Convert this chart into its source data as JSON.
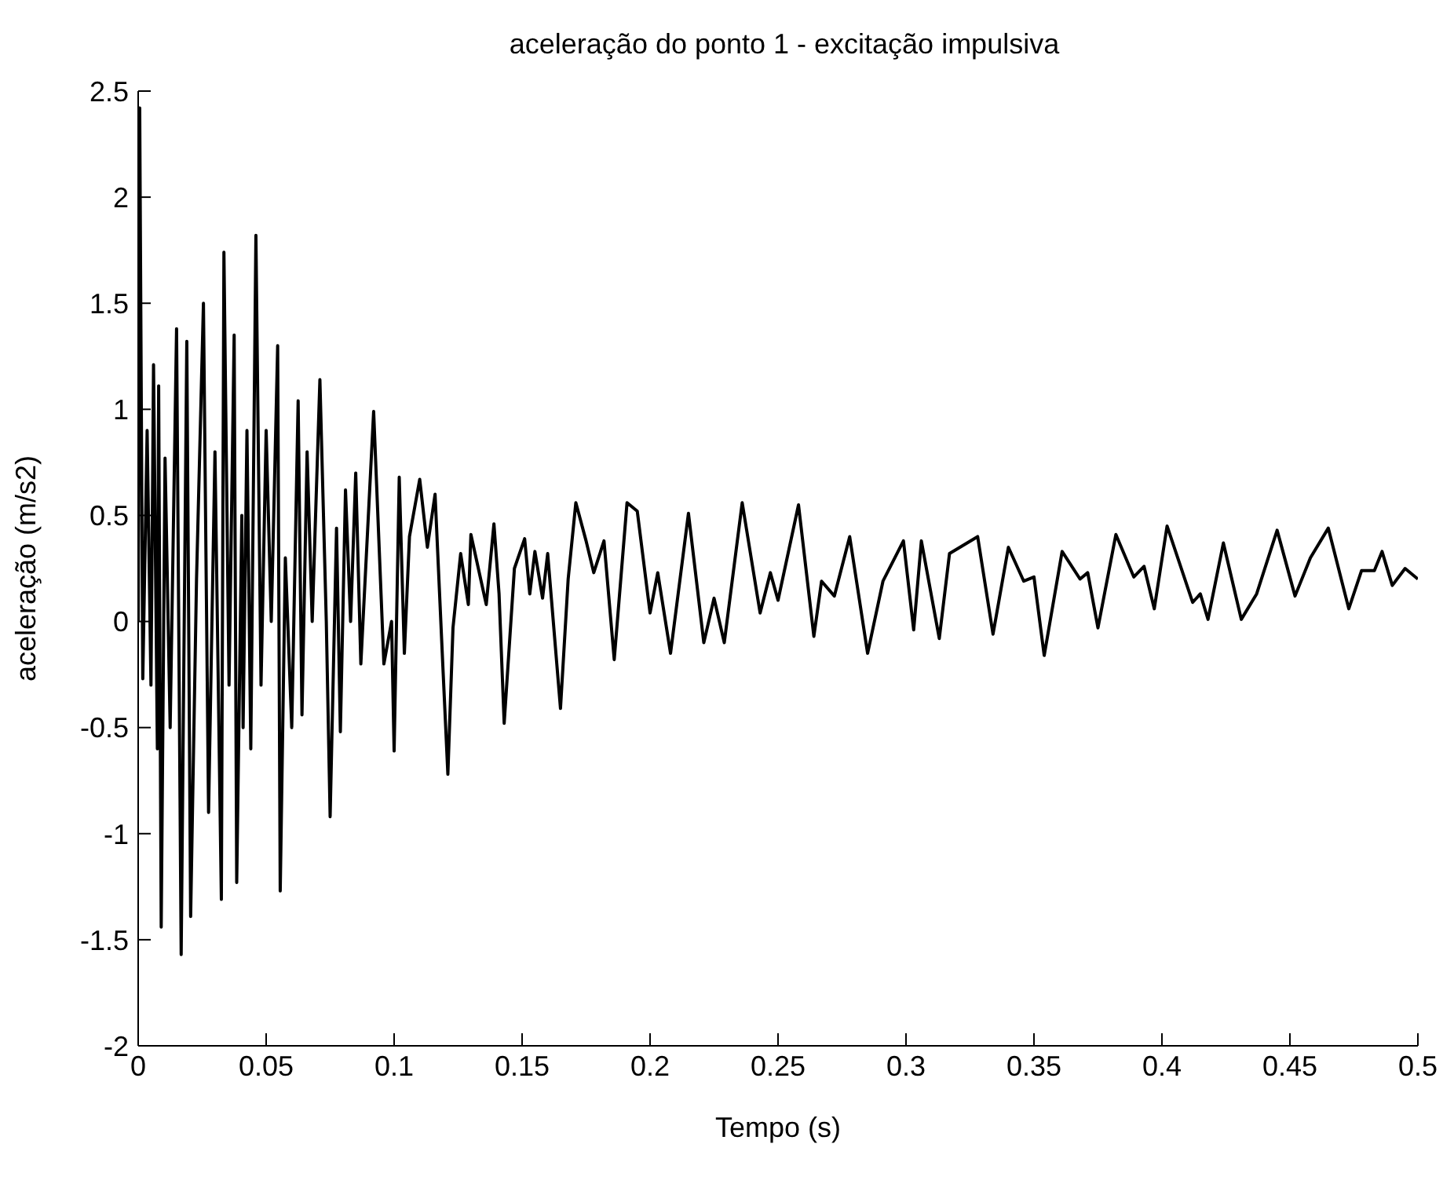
{
  "chart_data": {
    "type": "line",
    "title": "aceleração do ponto 1 - excitação impulsiva",
    "xlabel": "Tempo (s)",
    "ylabel": "aceleração (m/s2)",
    "xlim": [
      0,
      0.5
    ],
    "xticks": [
      0,
      0.05,
      0.1,
      0.15,
      0.2,
      0.25,
      0.3,
      0.35,
      0.4,
      0.45,
      0.5
    ],
    "ylim": [
      -2,
      2.5
    ],
    "yticks": [
      -2,
      -1.5,
      -1,
      -0.5,
      0,
      0.5,
      1,
      1.5,
      2,
      2.5
    ],
    "grid": false,
    "legend": false,
    "marker": "none",
    "series": [
      {
        "color": "#000000",
        "x": [
          0,
          0.0006,
          0.0018,
          0.0035,
          0.005,
          0.006,
          0.0075,
          0.008,
          0.009,
          0.0105,
          0.0125,
          0.015,
          0.0168,
          0.019,
          0.0205,
          0.0228,
          0.0255,
          0.0275,
          0.03,
          0.0325,
          0.0335,
          0.0355,
          0.0375,
          0.0385,
          0.0405,
          0.041,
          0.0425,
          0.044,
          0.046,
          0.048,
          0.05,
          0.052,
          0.0545,
          0.0555,
          0.0575,
          0.06,
          0.0625,
          0.064,
          0.066,
          0.068,
          0.071,
          0.0735,
          0.075,
          0.0775,
          0.079,
          0.081,
          0.083,
          0.085,
          0.087,
          0.092,
          0.096,
          0.099,
          0.1,
          0.102,
          0.104,
          0.106,
          0.11,
          0.113,
          0.116,
          0.119,
          0.121,
          0.123,
          0.126,
          0.129,
          0.13,
          0.136,
          0.139,
          0.141,
          0.143,
          0.147,
          0.151,
          0.153,
          0.155,
          0.158,
          0.16,
          0.165,
          0.168,
          0.171,
          0.175,
          0.178,
          0.182,
          0.186,
          0.191,
          0.195,
          0.2,
          0.203,
          0.208,
          0.215,
          0.221,
          0.225,
          0.229,
          0.236,
          0.243,
          0.247,
          0.25,
          0.258,
          0.264,
          0.267,
          0.272,
          0.278,
          0.285,
          0.291,
          0.299,
          0.303,
          0.306,
          0.313,
          0.317,
          0.328,
          0.334,
          0.34,
          0.346,
          0.35,
          0.354,
          0.361,
          0.368,
          0.371,
          0.375,
          0.382,
          0.389,
          0.393,
          0.397,
          0.402,
          0.412,
          0.415,
          0.418,
          0.424,
          0.431,
          0.437,
          0.445,
          0.452,
          0.458,
          0.465,
          0.473,
          0.478,
          0.483,
          0.486,
          0.49,
          0.495,
          0.5
        ],
        "values": [
          0,
          2.42,
          -0.27,
          0.9,
          -0.3,
          1.21,
          -0.6,
          1.11,
          -1.44,
          0.77,
          -0.5,
          1.38,
          -1.57,
          1.32,
          -1.39,
          0.2,
          1.5,
          -0.9,
          0.8,
          -1.31,
          1.74,
          -0.3,
          1.35,
          -1.23,
          0.5,
          -0.5,
          0.9,
          -0.6,
          1.82,
          -0.3,
          0.9,
          0,
          1.3,
          -1.27,
          0.3,
          -0.5,
          1.04,
          -0.44,
          0.8,
          0,
          1.14,
          0,
          -0.92,
          0.44,
          -0.52,
          0.62,
          0,
          0.7,
          -0.2,
          0.99,
          -0.2,
          0,
          -0.61,
          0.68,
          -0.15,
          0.4,
          0.67,
          0.35,
          0.6,
          -0.2,
          -0.72,
          -0.03,
          0.32,
          0.08,
          0.41,
          0.08,
          0.46,
          0.13,
          -0.48,
          0.25,
          0.39,
          0.13,
          0.33,
          0.11,
          0.32,
          -0.41,
          0.2,
          0.56,
          0.38,
          0.23,
          0.38,
          -0.18,
          0.56,
          0.52,
          0.04,
          0.23,
          -0.15,
          0.51,
          -0.1,
          0.11,
          -0.1,
          0.56,
          0.04,
          0.23,
          0.1,
          0.55,
          -0.07,
          0.19,
          0.12,
          0.4,
          -0.15,
          0.19,
          0.38,
          -0.04,
          0.38,
          -0.08,
          0.32,
          0.4,
          -0.06,
          0.35,
          0.19,
          0.21,
          -0.16,
          0.33,
          0.2,
          0.23,
          -0.03,
          0.41,
          0.21,
          0.26,
          0.06,
          0.45,
          0.09,
          0.13,
          0.01,
          0.37,
          0.01,
          0.13,
          0.43,
          0.12,
          0.3,
          0.44,
          0.06,
          0.24,
          0.24,
          0.33,
          0.17,
          0.25,
          0.2
        ]
      }
    ]
  }
}
